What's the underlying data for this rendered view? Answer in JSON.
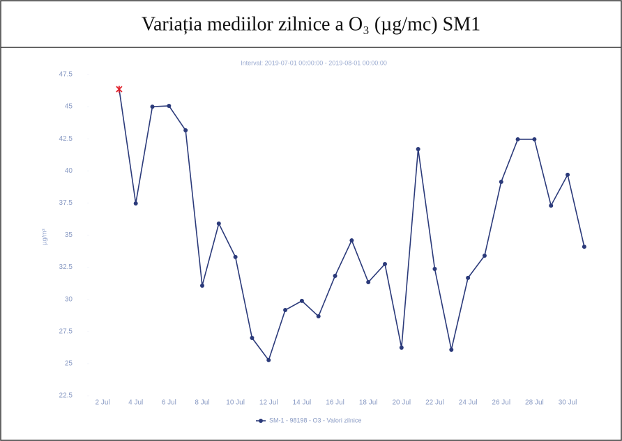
{
  "chart_data": {
    "type": "line",
    "title": "Variația mediilor zilnice a O₃ (µg/mc) SM1",
    "subtitle": "Interval: 2019-07-01 00:00:00 - 2019-08-01 00:00:00",
    "y_label": "µg/m³",
    "x": [
      3,
      4,
      5,
      6,
      7,
      8,
      9,
      10,
      11,
      12,
      13,
      14,
      15,
      16,
      17,
      18,
      19,
      20,
      21,
      22,
      23,
      24,
      25,
      26,
      27,
      28,
      29,
      30,
      31
    ],
    "series": [
      {
        "name": "SM-1 - 98198 - O3 - Valori zilnice",
        "color": "#2b3a7a",
        "values": [
          46.36,
          37.47,
          45.0,
          45.06,
          43.16,
          31.07,
          35.9,
          33.3,
          27.0,
          25.27,
          29.17,
          29.88,
          28.68,
          31.83,
          34.59,
          31.34,
          32.75,
          26.24,
          41.7,
          32.37,
          26.08,
          31.67,
          33.4,
          39.15,
          42.46,
          42.46,
          37.3,
          39.7,
          34.1
        ]
      }
    ],
    "max_marker_color": "#e0202a",
    "xlim": [
      1.2,
      31.3
    ],
    "xticks": [
      {
        "value": 2,
        "label": "2 Jul"
      },
      {
        "value": 4,
        "label": "4 Jul"
      },
      {
        "value": 6,
        "label": "6 Jul"
      },
      {
        "value": 8,
        "label": "8 Jul"
      },
      {
        "value": 10,
        "label": "10 Jul"
      },
      {
        "value": 12,
        "label": "12 Jul"
      },
      {
        "value": 14,
        "label": "14 Jul"
      },
      {
        "value": 16,
        "label": "16 Jul"
      },
      {
        "value": 18,
        "label": "18 Jul"
      },
      {
        "value": 20,
        "label": "20 Jul"
      },
      {
        "value": 22,
        "label": "22 Jul"
      },
      {
        "value": 24,
        "label": "24 Jul"
      },
      {
        "value": 26,
        "label": "26 Jul"
      },
      {
        "value": 28,
        "label": "28 Jul"
      },
      {
        "value": 30,
        "label": "30 Jul"
      }
    ],
    "ylim": [
      22.5,
      47.5
    ],
    "yticks": [
      22.5,
      25,
      27.5,
      30,
      32.5,
      35,
      37.5,
      40,
      42.5,
      45,
      47.5
    ]
  }
}
